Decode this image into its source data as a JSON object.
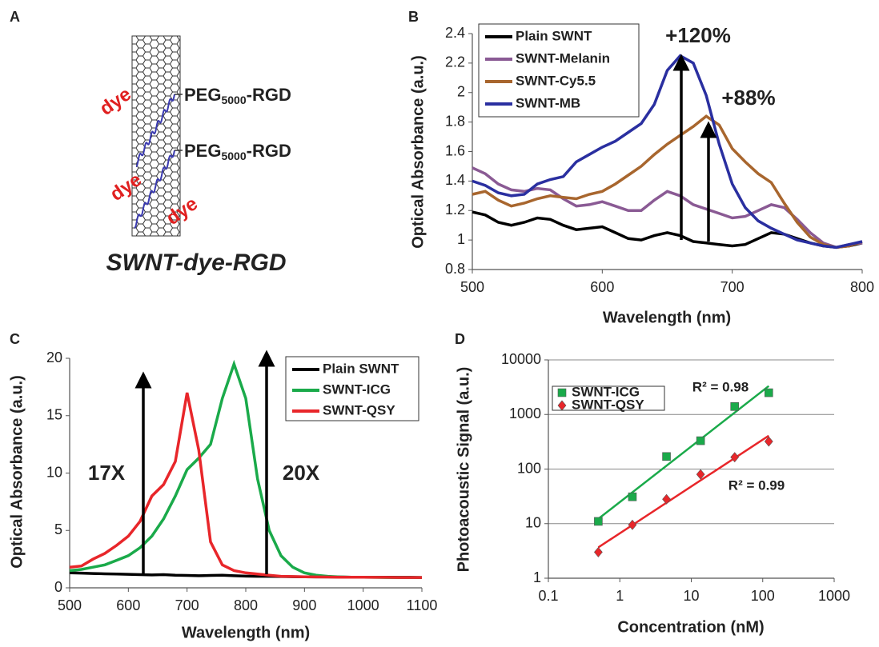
{
  "diagram": {
    "panel_label": "A",
    "title": "SWNT-dye-RGD",
    "dye_labels": [
      "dye",
      "dye",
      "dye"
    ],
    "peg_labels": [
      {
        "prefix": "PEG",
        "subscript": "5000",
        "suffix": "-RGD"
      },
      {
        "prefix": "PEG",
        "subscript": "5000",
        "suffix": "-RGD"
      }
    ]
  },
  "chart_data": [
    {
      "type": "line",
      "panel_label": "B",
      "xlabel": "Wavelength (nm)",
      "ylabel": "Optical Absorbance (a.u.)",
      "x": [
        500,
        510,
        520,
        530,
        540,
        550,
        560,
        570,
        580,
        590,
        600,
        610,
        620,
        630,
        640,
        650,
        660,
        670,
        680,
        690,
        700,
        710,
        720,
        730,
        740,
        750,
        760,
        770,
        780,
        790,
        800
      ],
      "xlim": [
        500,
        800
      ],
      "xticks": [
        500,
        600,
        700,
        800
      ],
      "ylim": [
        0.8,
        2.4
      ],
      "yticks": [
        0.8,
        1,
        1.2,
        1.4,
        1.6,
        1.8,
        2,
        2.2,
        2.4
      ],
      "grid": false,
      "legend": "upper left",
      "annotations": [
        "+120%",
        "+88%"
      ],
      "series": [
        {
          "name": "Plain SWNT",
          "color": "#000000",
          "values": [
            1.19,
            1.17,
            1.12,
            1.1,
            1.12,
            1.15,
            1.14,
            1.1,
            1.07,
            1.08,
            1.09,
            1.05,
            1.01,
            1.0,
            1.03,
            1.05,
            1.03,
            0.99,
            0.98,
            0.97,
            0.96,
            0.97,
            1.01,
            1.05,
            1.04,
            1.01,
            0.98,
            0.96,
            0.95,
            0.96,
            0.98
          ]
        },
        {
          "name": "SWNT-Melanin",
          "color": "#8a5a94",
          "values": [
            1.49,
            1.45,
            1.38,
            1.34,
            1.33,
            1.35,
            1.34,
            1.28,
            1.23,
            1.24,
            1.26,
            1.23,
            1.2,
            1.2,
            1.27,
            1.33,
            1.3,
            1.24,
            1.21,
            1.18,
            1.15,
            1.16,
            1.2,
            1.24,
            1.22,
            1.14,
            1.05,
            0.98,
            0.95,
            0.97,
            0.98
          ]
        },
        {
          "name": "SWNT-Cy5.5",
          "color": "#a8662e",
          "values": [
            1.31,
            1.33,
            1.27,
            1.23,
            1.25,
            1.28,
            1.3,
            1.29,
            1.28,
            1.31,
            1.33,
            1.38,
            1.44,
            1.5,
            1.58,
            1.65,
            1.71,
            1.77,
            1.84,
            1.78,
            1.62,
            1.53,
            1.45,
            1.39,
            1.25,
            1.12,
            1.02,
            0.97,
            0.95,
            0.96,
            0.99
          ]
        },
        {
          "name": "SWNT-MB",
          "color": "#2a2fa0",
          "values": [
            1.4,
            1.37,
            1.32,
            1.3,
            1.31,
            1.38,
            1.41,
            1.43,
            1.53,
            1.58,
            1.63,
            1.67,
            1.73,
            1.79,
            1.92,
            2.15,
            2.25,
            2.2,
            1.98,
            1.65,
            1.38,
            1.22,
            1.13,
            1.08,
            1.04,
            1.0,
            0.98,
            0.96,
            0.95,
            0.97,
            0.99
          ]
        }
      ]
    },
    {
      "type": "line",
      "panel_label": "C",
      "xlabel": "Wavelength (nm)",
      "ylabel": "Optical Absorbance (a.u.)",
      "x": [
        500,
        520,
        540,
        560,
        580,
        600,
        620,
        640,
        660,
        680,
        700,
        720,
        740,
        760,
        780,
        800,
        820,
        840,
        860,
        880,
        900,
        920,
        940,
        960,
        980,
        1000,
        1020,
        1040,
        1060,
        1080,
        1100
      ],
      "xlim": [
        500,
        1100
      ],
      "xticks": [
        500,
        600,
        700,
        800,
        900,
        1000,
        1100
      ],
      "ylim": [
        0,
        20
      ],
      "yticks": [
        0,
        5,
        10,
        15,
        20
      ],
      "grid": false,
      "legend": "upper right",
      "annotations": [
        "17X",
        "20X"
      ],
      "series": [
        {
          "name": "Plain SWNT",
          "color": "#000000",
          "values": [
            1.3,
            1.28,
            1.25,
            1.22,
            1.2,
            1.18,
            1.15,
            1.12,
            1.15,
            1.1,
            1.08,
            1.05,
            1.08,
            1.1,
            1.05,
            1.02,
            1.0,
            1.0,
            0.98,
            0.97,
            0.96,
            0.95,
            0.95,
            0.94,
            0.93,
            0.93,
            0.92,
            0.92,
            0.91,
            0.91,
            0.9
          ]
        },
        {
          "name": "SWNT-ICG",
          "color": "#1aaa4a",
          "values": [
            1.5,
            1.6,
            1.8,
            2.0,
            2.4,
            2.8,
            3.5,
            4.5,
            6.0,
            8.0,
            10.3,
            11.3,
            12.5,
            16.5,
            19.5,
            16.5,
            9.5,
            5.0,
            2.8,
            1.8,
            1.3,
            1.1,
            1.0,
            0.95,
            0.93,
            0.92,
            0.91,
            0.9,
            0.9,
            0.9,
            0.9
          ]
        },
        {
          "name": "SWNT-QSY",
          "color": "#e8262a",
          "values": [
            1.8,
            1.9,
            2.5,
            3.0,
            3.7,
            4.5,
            5.8,
            8.0,
            9.0,
            11.0,
            17.0,
            12.0,
            4.0,
            2.0,
            1.5,
            1.3,
            1.2,
            1.1,
            1.0,
            0.98,
            0.96,
            0.95,
            0.94,
            0.93,
            0.92,
            0.92,
            0.91,
            0.91,
            0.9,
            0.9,
            0.9
          ]
        }
      ]
    },
    {
      "type": "scatter",
      "panel_label": "D",
      "xlabel": "Concentration (nM)",
      "ylabel": "Photoacoustic Signal (a.u.)",
      "xlog": true,
      "ylog": true,
      "trendline": true,
      "grid": "y",
      "legend": "upper left",
      "xlim": [
        0.1,
        1000
      ],
      "xticks": [
        0.1,
        1,
        10,
        100,
        1000
      ],
      "ylim": [
        1,
        10000
      ],
      "yticks": [
        1,
        10,
        100,
        1000,
        10000
      ],
      "annotations": [
        "R² = 0.98",
        "R² = 0.99"
      ],
      "x": [
        0.5,
        1.5,
        4.5,
        13.5,
        40.5,
        121.5
      ],
      "series": [
        {
          "name": "SWNT-ICG",
          "color": "#1aaa4a",
          "marker": "square",
          "values": [
            11,
            31,
            170,
            330,
            1400,
            2500
          ]
        },
        {
          "name": "SWNT-QSY",
          "color": "#e8262a",
          "marker": "diamond",
          "values": [
            3,
            9.5,
            28,
            80,
            165,
            320
          ]
        }
      ]
    }
  ]
}
